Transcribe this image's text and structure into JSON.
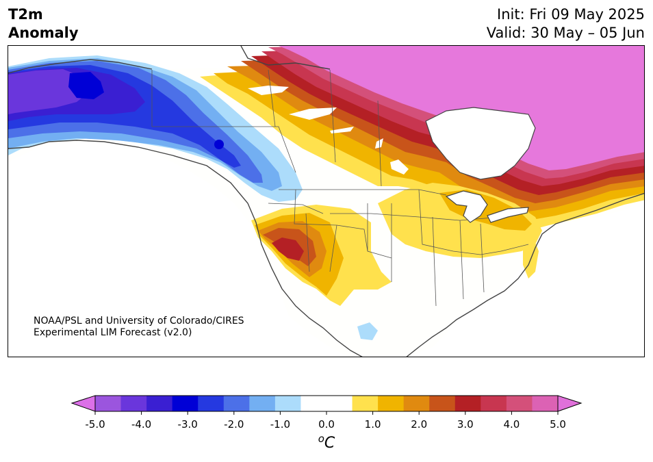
{
  "title": {
    "line1": "T2m",
    "line2": "Anomaly"
  },
  "info": {
    "init": "Init: Fri 09 May 2025",
    "valid": "Valid: 30 May – 05 Jun"
  },
  "credit": {
    "line1": "NOAA/PSL and University of Colorado/CIRES",
    "line2": "Experimental LIM Forecast (v2.0)"
  },
  "colorbar": {
    "unit": "oC",
    "tick_labels": [
      "-5.0",
      "-4.0",
      "-3.0",
      "-2.0",
      "-1.0",
      "0.0",
      "1.0",
      "2.0",
      "3.0",
      "4.0",
      "5.0"
    ],
    "bin_colors": [
      "#9b55de",
      "#6a36dc",
      "#3a1fd2",
      "#0000d6",
      "#2539e0",
      "#4c70e8",
      "#73aff2",
      "#acdcfb",
      "#ffffff",
      "#ffffff",
      "#ffe14d",
      "#f0b400",
      "#e08a10",
      "#c8541a",
      "#b42025",
      "#c83650",
      "#d4507a",
      "#dc62b4"
    ],
    "under_color": "#dc70e8",
    "over_color": "#e070da"
  },
  "map": {
    "colors": {
      "cold_outer": "#acdcfb",
      "cold_2": "#73aff2",
      "cold_3": "#4c70e8",
      "cold_4": "#2539e0",
      "cold_5": "#0000d6",
      "cold_6": "#3a1fd2",
      "cold_7": "#6a36dc",
      "warm_1": "#ffe14d",
      "warm_2": "#f0b400",
      "warm_3": "#e08a10",
      "warm_4": "#c8541a",
      "warm_5": "#b42025",
      "warm_6": "#c83650",
      "warm_7": "#d4507a",
      "warm_top": "#e678dc",
      "neutral": "#fffffd",
      "coast": "#444444"
    }
  }
}
